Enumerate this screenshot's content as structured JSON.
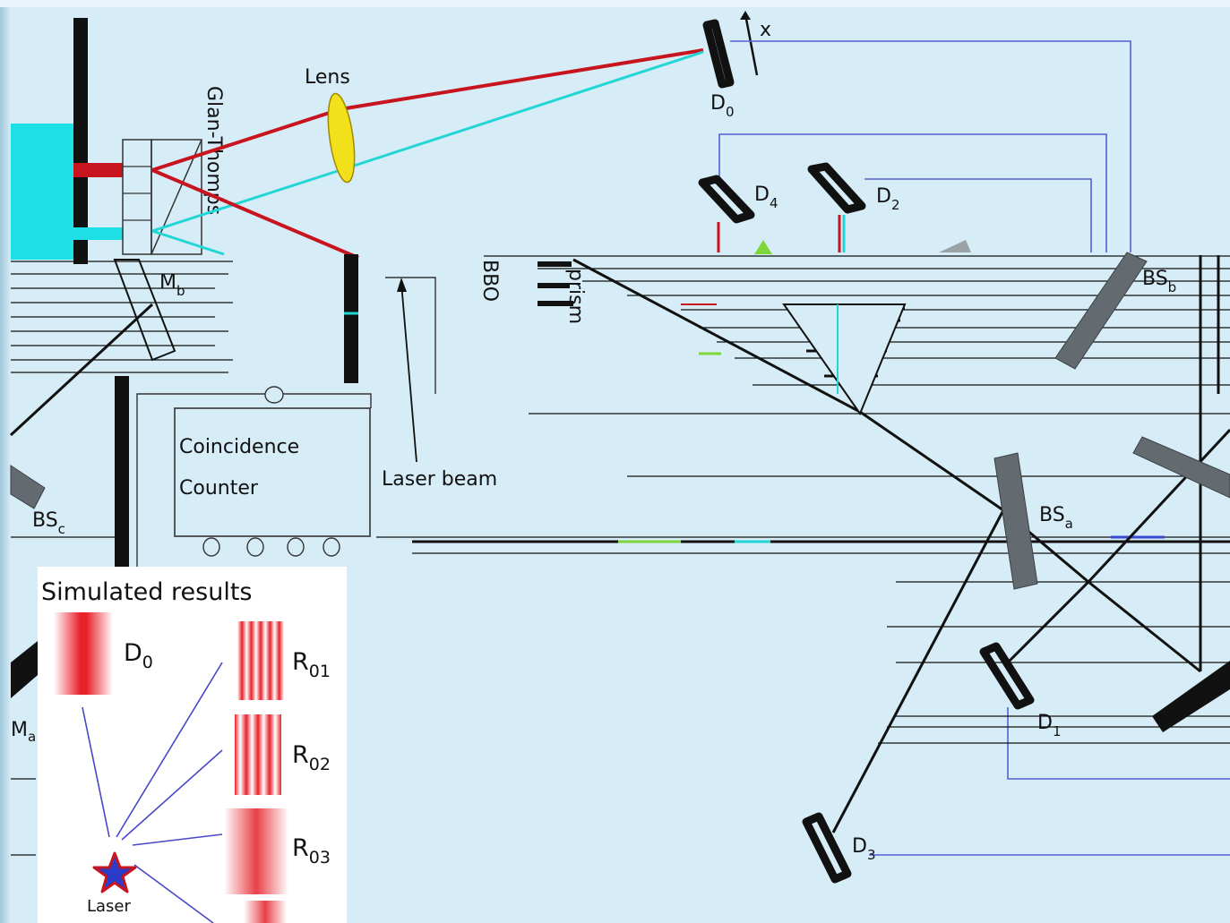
{
  "labels": {
    "lens": "Lens",
    "glan_thompson": "Glan-Thomps",
    "x_axis": "x",
    "d0_main": "D",
    "d0_main_sub": "0",
    "d4": "D",
    "d4_sub": "4",
    "d2": "D",
    "d2_sub": "2",
    "d1": "D",
    "d1_sub": "1",
    "d3": "D",
    "d3_sub": "3",
    "mb": "M",
    "mb_sub": "b",
    "ma": "M",
    "ma_sub": "a",
    "bsa": "BS",
    "bsa_sub": "a",
    "bsb": "BS",
    "bsb_sub": "b",
    "bsc": "BS",
    "bsc_sub": "c",
    "bbo": "BBO",
    "prism": "prism",
    "coincidence_line1": "Coincidence",
    "coincidence_line2": "Counter",
    "laser_beam": "Laser beam"
  },
  "inset": {
    "title": "Simulated results",
    "d0": "D",
    "d0_sub": "0",
    "r01": "R",
    "r01_sub": "01",
    "r02": "R",
    "r02_sub": "02",
    "r03": "R",
    "r03_sub": "03",
    "laser": "Laser"
  },
  "colors": {
    "background": "#d6ecf6",
    "signal_beam": "#c8141e",
    "idler_beam": "#22d6d6",
    "lens": "#f2e01a",
    "beamsplitter": "#646b70",
    "wiring": "#5560d6"
  }
}
